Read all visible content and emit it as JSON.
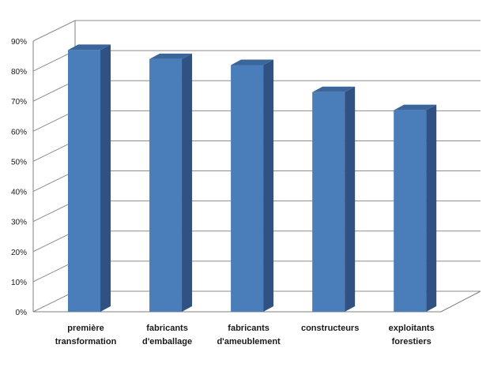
{
  "chart_data": {
    "type": "bar",
    "title": "",
    "xlabel": "",
    "ylabel": "",
    "categories": [
      [
        "première",
        "transformation"
      ],
      [
        "fabricants",
        "d'emballage"
      ],
      [
        "fabricants",
        "d'ameublement"
      ],
      [
        "constructeurs"
      ],
      [
        "exploitants",
        "forestiers"
      ]
    ],
    "values": [
      87,
      84,
      82,
      73,
      67
    ],
    "unit": "%",
    "ylim": [
      0,
      90
    ],
    "yticks": [
      "0%",
      "10%",
      "20%",
      "30%",
      "40%",
      "50%",
      "60%",
      "70%",
      "80%",
      "90%"
    ],
    "grid": true,
    "three_d": true,
    "legend": "none",
    "colors": {
      "bar_front": "#4a7ebb",
      "bar_side": "#2f5283",
      "bar_top": "#3b669c",
      "grid": "#8c8c8c",
      "wall": "#7f7f7f"
    }
  }
}
